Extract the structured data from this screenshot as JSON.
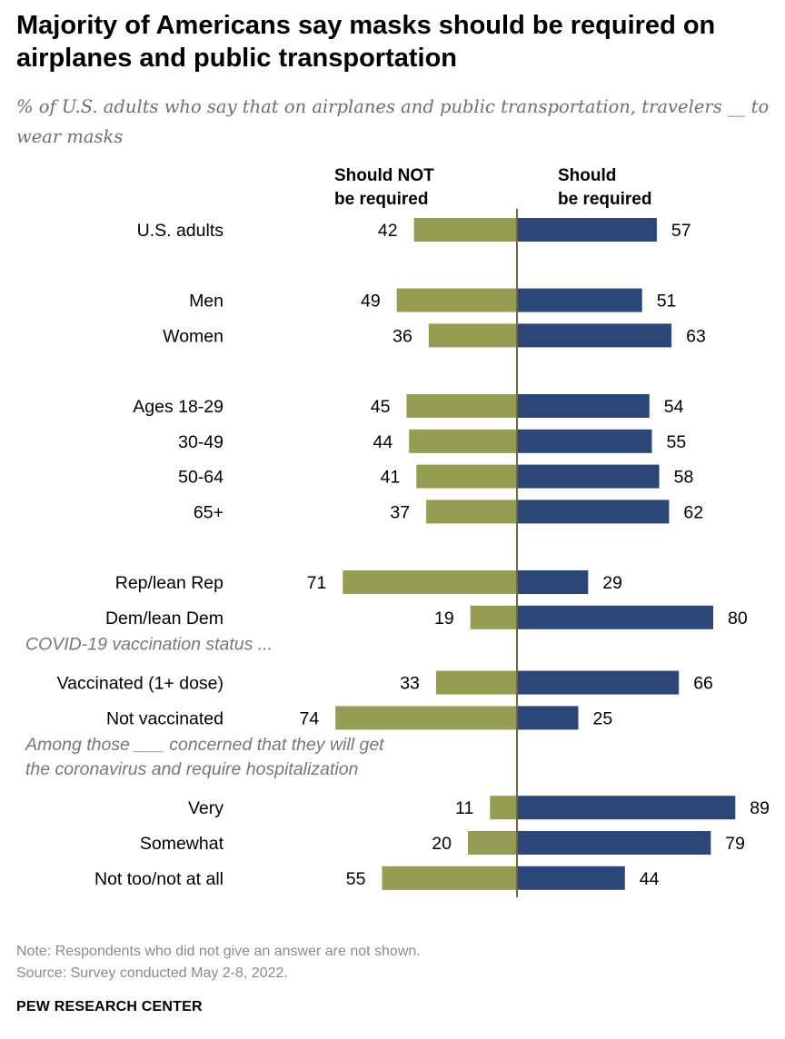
{
  "colors": {
    "not_required": "#969d52",
    "required": "#2c4777",
    "axis_line": "#6b6b3e",
    "section_label": "#777777"
  },
  "chart_data": {
    "type": "bar",
    "title": "Majority of Americans say masks should be required on airplanes and public transportation",
    "subtitle": "% of U.S. adults who say that on airplanes and public transportation, travelers __ to wear masks",
    "series": [
      {
        "name": "Should NOT be required",
        "name_lines": [
          "Should NOT",
          "be required"
        ],
        "color": "#969d52"
      },
      {
        "name": "Should be required",
        "name_lines": [
          "Should",
          "be required"
        ],
        "color": "#2c4777"
      }
    ],
    "rows": [
      {
        "kind": "category",
        "label": "U.S. adults",
        "not_required": 42,
        "required": 57
      },
      {
        "kind": "spacer"
      },
      {
        "kind": "category",
        "label": "Men",
        "not_required": 49,
        "required": 51
      },
      {
        "kind": "category",
        "label": "Women",
        "not_required": 36,
        "required": 63
      },
      {
        "kind": "spacer"
      },
      {
        "kind": "category",
        "label": "Ages 18-29",
        "not_required": 45,
        "required": 54
      },
      {
        "kind": "category",
        "label": "30-49",
        "not_required": 44,
        "required": 55
      },
      {
        "kind": "category",
        "label": "50-64",
        "not_required": 41,
        "required": 58
      },
      {
        "kind": "category",
        "label": "65+",
        "not_required": 37,
        "required": 62
      },
      {
        "kind": "spacer"
      },
      {
        "kind": "category",
        "label": "Rep/lean Rep",
        "not_required": 71,
        "required": 29
      },
      {
        "kind": "category",
        "label": "Dem/lean Dem",
        "not_required": 19,
        "required": 80
      },
      {
        "kind": "section",
        "lines": [
          "COVID-19 vaccination status ..."
        ]
      },
      {
        "kind": "category",
        "label": "Vaccinated (1+ dose)",
        "not_required": 33,
        "required": 66
      },
      {
        "kind": "category",
        "label": "Not vaccinated",
        "not_required": 74,
        "required": 25
      },
      {
        "kind": "section",
        "lines": [
          "Among those ___ concerned that they will get",
          "the coronavirus and require hospitalization"
        ]
      },
      {
        "kind": "category",
        "label": "Very",
        "not_required": 11,
        "required": 89
      },
      {
        "kind": "category",
        "label": "Somewhat",
        "not_required": 20,
        "required": 79
      },
      {
        "kind": "category",
        "label": "Not too/not at all",
        "not_required": 55,
        "required": 44
      }
    ]
  },
  "footer": {
    "note": "Note: Respondents who did not give an answer are not shown.",
    "source": "Source: Survey conducted May 2-8, 2022.",
    "brand": "PEW RESEARCH CENTER"
  }
}
